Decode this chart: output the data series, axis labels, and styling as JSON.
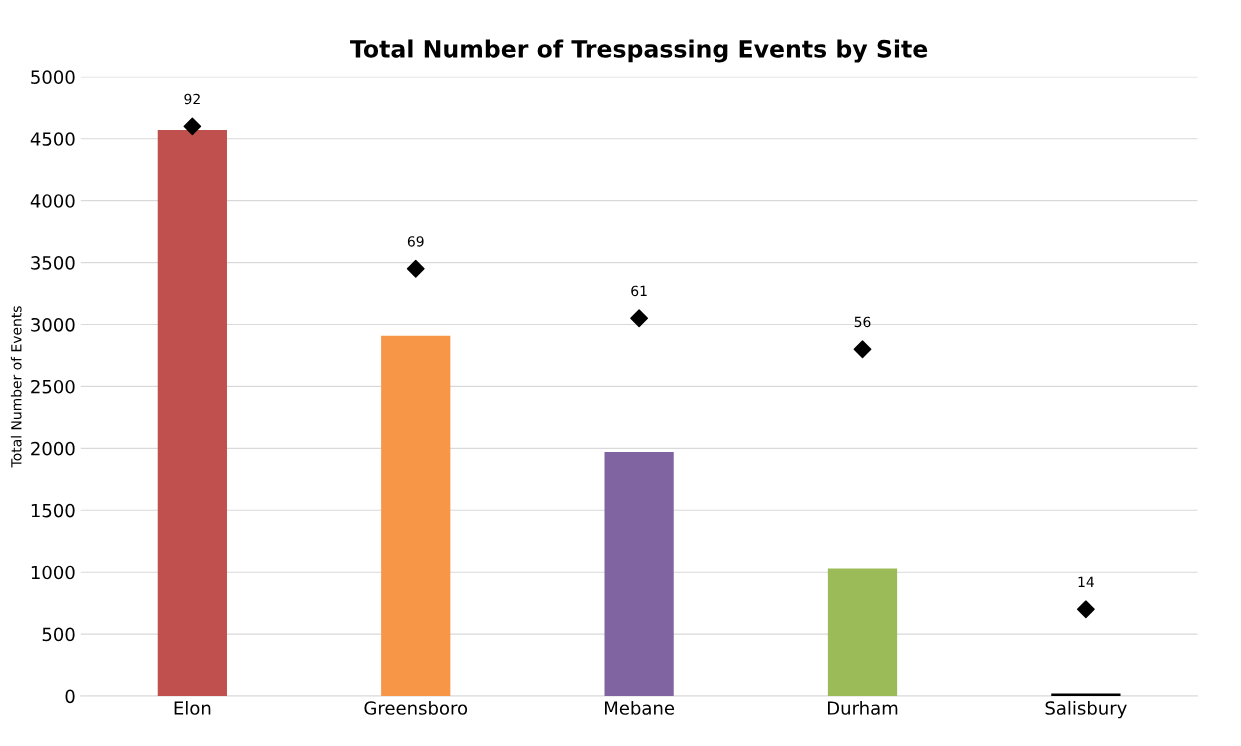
{
  "chart_data": {
    "type": "bar",
    "title": "Total Number of Trespassing Events by Site",
    "ylabel": "Total Number of Events",
    "categories": [
      "Elon",
      "Greensboro",
      "Mebane",
      "Durham",
      "Salisbury"
    ],
    "series": [
      {
        "colors": [
          "#c0504d",
          "#f79646",
          "#8064a2",
          "#9bbb59",
          "#000000"
        ],
        "values": [
          4570,
          2910,
          1970,
          1030,
          20
        ]
      },
      {
        "type": "scatter",
        "axis": "y2",
        "color": "#000000",
        "marker": "diamond",
        "values": [
          92,
          69,
          61,
          56,
          14
        ],
        "value_labels": [
          "92",
          "69",
          "61",
          "56",
          "14"
        ]
      }
    ],
    "ylim": [
      0,
      5000
    ],
    "yticks": [
      0,
      500,
      1000,
      1500,
      2000,
      2500,
      3000,
      3500,
      4000,
      4500,
      5000
    ],
    "y2lim": [
      0,
      100
    ],
    "grid": "y",
    "legend": false
  }
}
